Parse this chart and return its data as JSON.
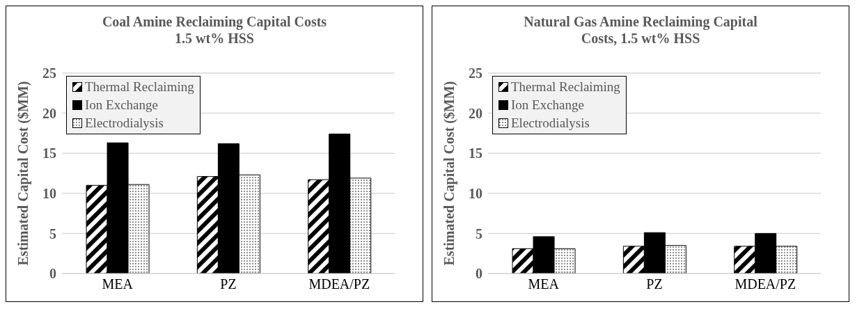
{
  "chart_data": [
    {
      "type": "bar",
      "title": "Coal Amine Reclaiming Capital Costs 1.5 wt% HSS",
      "ylabel": "Estimated Capital Cost ($MM)",
      "categories": [
        "MEA",
        "PZ",
        "MDEA/PZ"
      ],
      "series": [
        {
          "name": "Thermal Reclaiming",
          "color": "#000000",
          "values": [
            11.0,
            12.1,
            11.7
          ]
        },
        {
          "name": "Ion Exchange",
          "color": "#000000",
          "values": [
            16.3,
            16.2,
            17.4
          ]
        },
        {
          "name": "Electrodialysis",
          "color": "#000000",
          "values": [
            11.1,
            12.3,
            11.9
          ]
        }
      ],
      "ylim": [
        0,
        25
      ],
      "yticks": [
        0,
        5,
        10,
        15,
        20,
        25
      ],
      "grid": "y",
      "legend": "top left"
    },
    {
      "type": "bar",
      "title": "Natural Gas Amine Reclaiming Capital Costs, 1.5 wt% HSS",
      "ylabel": "Estimated Capital Cost ($MM)",
      "categories": [
        "MEA",
        "PZ",
        "MDEA/PZ"
      ],
      "series": [
        {
          "name": "Thermal Reclaiming",
          "color": "#000000",
          "values": [
            3.1,
            3.4,
            3.4
          ]
        },
        {
          "name": "Ion Exchange",
          "color": "#000000",
          "values": [
            4.6,
            5.1,
            5.0
          ]
        },
        {
          "name": "Electrodialysis",
          "color": "#000000",
          "values": [
            3.1,
            3.5,
            3.4
          ]
        }
      ],
      "ylim": [
        0,
        25
      ],
      "yticks": [
        0,
        5,
        10,
        15,
        20,
        25
      ],
      "grid": "y",
      "legend": "top left"
    }
  ]
}
